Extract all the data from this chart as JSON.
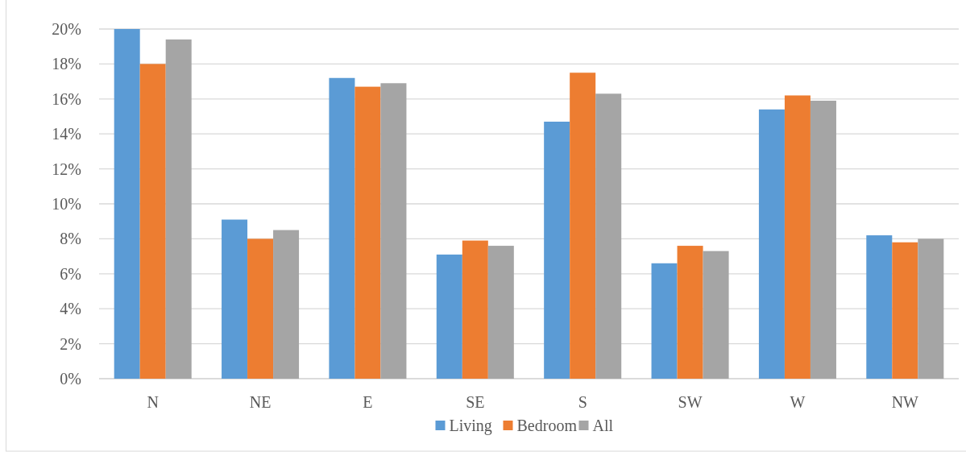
{
  "chart_data": {
    "type": "bar",
    "categories": [
      "N",
      "NE",
      "E",
      "SE",
      "S",
      "SW",
      "W",
      "NW"
    ],
    "series": [
      {
        "name": "Living",
        "color": "#5b9bd5",
        "values": [
          20,
          9.1,
          17.2,
          7.1,
          14.7,
          6.6,
          15.4,
          8.2
        ]
      },
      {
        "name": "Bedroom",
        "color": "#ed7d31",
        "values": [
          18,
          8,
          16.7,
          7.9,
          17.5,
          7.6,
          16.2,
          7.8
        ]
      },
      {
        "name": "All",
        "color": "#a5a5a5",
        "values": [
          19.4,
          8.5,
          16.9,
          7.6,
          16.3,
          7.3,
          15.9,
          8
        ]
      }
    ],
    "ylim": [
      0,
      20
    ],
    "yticks": [
      {
        "value": 0,
        "label": "0%"
      },
      {
        "value": 2,
        "label": "2%"
      },
      {
        "value": 4,
        "label": "4%"
      },
      {
        "value": 6,
        "label": "6%"
      },
      {
        "value": 8,
        "label": "8%"
      },
      {
        "value": 10,
        "label": "10%"
      },
      {
        "value": 12,
        "label": "12%"
      },
      {
        "value": 14,
        "label": "14%"
      },
      {
        "value": 16,
        "label": "16%"
      },
      {
        "value": 18,
        "label": "18%"
      },
      {
        "value": 20,
        "label": "20%"
      }
    ],
    "grid": "y",
    "legend": "bottom"
  }
}
